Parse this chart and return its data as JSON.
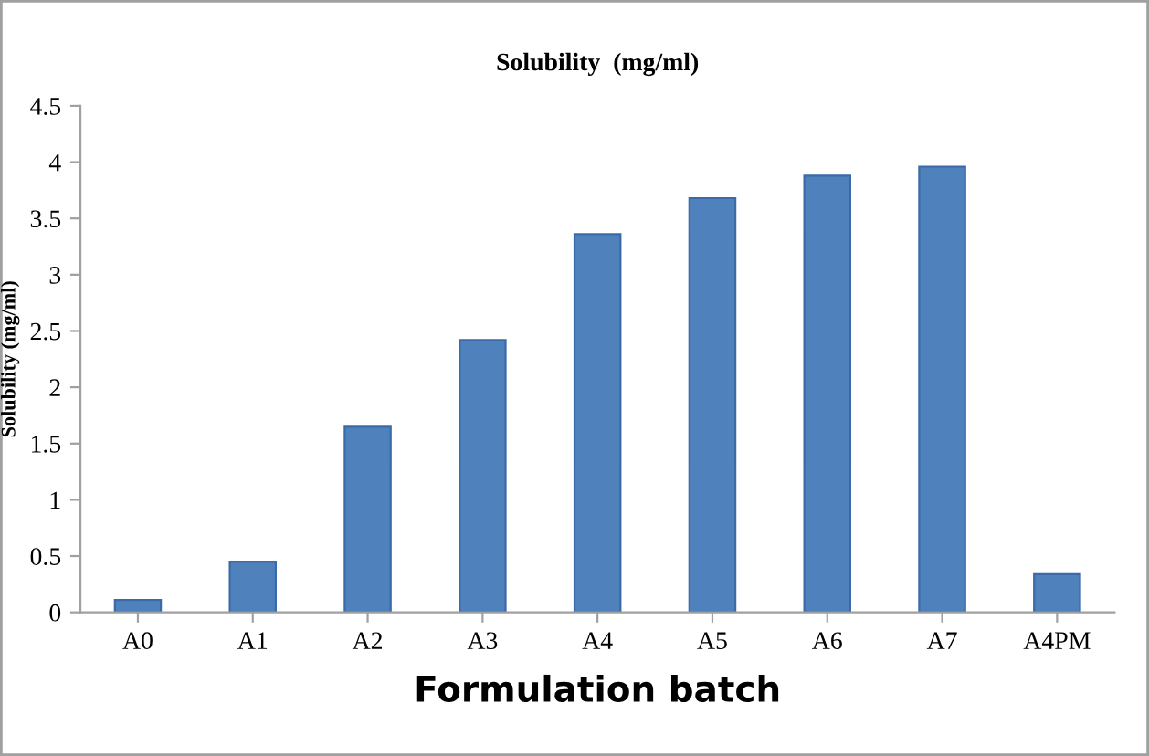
{
  "chart_data": {
    "type": "bar",
    "title": "Solubility  (mg/ml)",
    "xlabel": "Formulation batch",
    "ylabel": "Solubility (mg/ml)",
    "categories": [
      "A0",
      "A1",
      "A2",
      "A3",
      "A4",
      "A5",
      "A6",
      "A7",
      "A4PM"
    ],
    "values": [
      0.11,
      0.45,
      1.65,
      2.42,
      3.36,
      3.68,
      3.88,
      3.96,
      0.34
    ],
    "color": "#4f81bd",
    "ylim": [
      0,
      4.5
    ],
    "yticks": [
      0,
      0.5,
      1,
      1.5,
      2,
      2.5,
      3,
      3.5,
      4,
      4.5
    ],
    "grid": false,
    "legend": false
  }
}
